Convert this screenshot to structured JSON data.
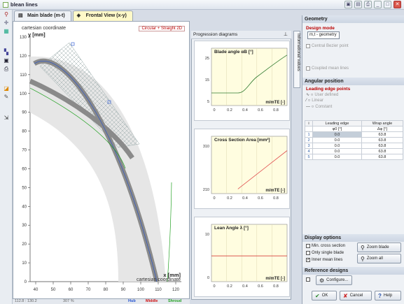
{
  "window": {
    "title": "blean lines"
  },
  "tabs": [
    {
      "label": "Main blade (m-t)",
      "active": false
    },
    {
      "label": "Frontal View (x-y)",
      "active": true
    }
  ],
  "toolbar": {
    "icons": [
      "zoom-icon",
      "move-icon",
      "grid-icon",
      "plot-icon",
      "save-icon",
      "print-icon",
      "color-icon",
      "pen-icon",
      "export-icon"
    ]
  },
  "plot": {
    "corner_top": "cartesian coordinate",
    "ylabel": "y [mm]",
    "mode": "Circular + Straight 2D",
    "xlabel": "x [mm]",
    "corner_bottom": "cartesian coordinate",
    "yticks": [
      "130",
      "120",
      "110",
      "100",
      "90",
      "80",
      "70",
      "60",
      "50",
      "40",
      "30",
      "20",
      "10",
      "0"
    ],
    "xticks": [
      "40",
      "50",
      "60",
      "70",
      "80",
      "90",
      "100",
      "110",
      "120"
    ]
  },
  "statusbar": {
    "coords": "112.8 : 130.2",
    "zoom": "307 %",
    "hub": "Hub",
    "middle": "Middle",
    "shroud": "Shroud"
  },
  "progression": {
    "title": "Progression diagrams",
    "side_tab": "Informational values",
    "x_label": "m/mTE [-]",
    "x_ticks": [
      "0",
      "0.2",
      "0.4",
      "0.6",
      "0.8"
    ],
    "diagrams": [
      {
        "title": "Blade angle αB [°]",
        "yticks": [
          "25",
          "15",
          "5"
        ]
      },
      {
        "title": "Cross Section Area [mm²]",
        "yticks": [
          "310",
          "210"
        ]
      },
      {
        "title": "Lean Angle λ [°]",
        "yticks": [
          "10",
          "0"
        ]
      }
    ]
  },
  "geometry": {
    "header": "Geometry",
    "design_mode_label": "Design mode",
    "design_mode_value": "m,t - geometry",
    "central_bezier": "Central Bezier point",
    "coupled_mean": "Coupled mean lines",
    "angular_header": "Angular position",
    "leading_label": "Leading edge points",
    "radio_user": "User defined",
    "radio_linear": "Linear",
    "radio_constant": "Constant",
    "table": {
      "headers": [
        "i",
        "Leading edge",
        "Wrap angle"
      ],
      "units": [
        "",
        "φ0 [°]",
        "Δφ [°]"
      ],
      "rows": [
        [
          "1",
          "0.0",
          "63.8"
        ],
        [
          "2",
          "0.0",
          "63.8"
        ],
        [
          "3",
          "0.0",
          "63.8"
        ],
        [
          "4",
          "0.0",
          "63.8"
        ],
        [
          "5",
          "0.0",
          "63.8"
        ]
      ]
    },
    "display_header": "Display options",
    "min_cross": "Min. cross section",
    "only_single": "Only single blade",
    "inner_mean": "Inner mean lines",
    "zoom_blade": "Zoom blade",
    "zoom_all": "Zoom all",
    "reference_header": "Reference designs",
    "configure": "Configure...",
    "ok": "OK",
    "cancel": "Cancel",
    "help": "Help"
  },
  "colors": {
    "accent": "#b00000",
    "hub": "#1f4fd0",
    "middle": "#d01010",
    "shroud": "#20a020",
    "diagram_bg": "#fffde0"
  }
}
